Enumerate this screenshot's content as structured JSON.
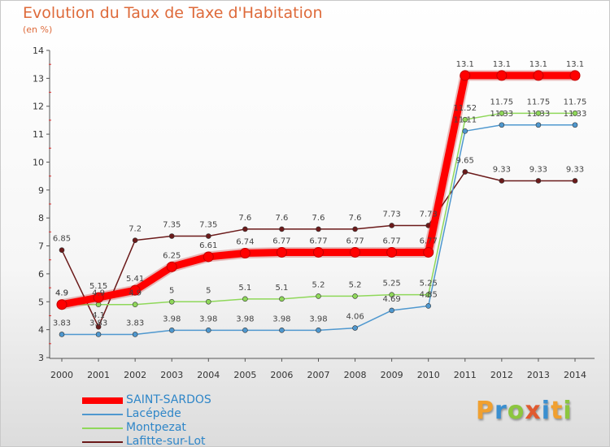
{
  "header": {
    "title": "Evolution du Taux de Taxe d'Habitation",
    "subtitle": "(en %)"
  },
  "logo": {
    "letters": [
      "P",
      "r",
      "o",
      "x",
      "i",
      "t",
      "i"
    ],
    "colors": [
      "#f0a030",
      "#3a8fd0",
      "#8cc63f",
      "#e05a30",
      "#3a8fd0",
      "#f0a030",
      "#8cc63f"
    ]
  },
  "chart_data": {
    "type": "line",
    "x": [
      2000,
      2001,
      2002,
      2003,
      2004,
      2005,
      2006,
      2007,
      2008,
      2009,
      2010,
      2011,
      2012,
      2013,
      2014
    ],
    "ylim": [
      3,
      14
    ],
    "yticks": [
      3,
      4,
      5,
      6,
      7,
      8,
      9,
      10,
      11,
      12,
      13,
      14
    ],
    "grid": false,
    "legend_position": "bottom-left",
    "series": [
      {
        "name": "SAINT-SARDOS",
        "color": "#ff0000",
        "values": [
          4.9,
          5.15,
          5.41,
          6.25,
          6.61,
          6.74,
          6.77,
          6.77,
          6.77,
          6.77,
          6.77,
          13.1,
          13.1,
          13.1,
          13.1
        ],
        "labels": [
          "4.9",
          "5.15",
          "5.41",
          "6.25",
          "6.61",
          "6.74",
          "6.77",
          "6.77",
          "6.77",
          "6.77",
          "6.77",
          "13.1",
          "13.1",
          "13.1",
          "13.1"
        ]
      },
      {
        "name": "Lacépède",
        "color": "#4f98cf",
        "values": [
          3.83,
          3.83,
          3.83,
          3.98,
          3.98,
          3.98,
          3.98,
          3.98,
          4.06,
          4.69,
          4.85,
          11.11,
          11.33,
          11.33,
          11.33
        ],
        "labels": [
          "3.83",
          "3.83",
          "3.83",
          "3.98",
          "3.98",
          "3.98",
          "3.98",
          "3.98",
          "4.06",
          "4.69",
          "4.85",
          "11.11",
          "11.33",
          "11.33",
          "11.33"
        ]
      },
      {
        "name": "Montpezat",
        "color": "#8fd85a",
        "values": [
          4.9,
          4.9,
          4.9,
          5,
          5,
          5.1,
          5.1,
          5.2,
          5.2,
          5.25,
          5.25,
          11.52,
          11.75,
          11.75,
          11.75
        ],
        "labels": [
          "4.9",
          "4.9",
          "4.9",
          "5",
          "5",
          "5.1",
          "5.1",
          "5.2",
          "5.2",
          "5.25",
          "5.25",
          "11.52",
          "11.75",
          "11.75",
          "11.75"
        ]
      },
      {
        "name": "Lafitte-sur-Lot",
        "color": "#6b1a1a",
        "values": [
          6.85,
          4.1,
          7.2,
          7.35,
          7.35,
          7.6,
          7.6,
          7.6,
          7.6,
          7.73,
          7.73,
          9.65,
          9.33,
          9.33,
          9.33
        ],
        "labels": [
          "6.85",
          "4.1",
          "7.2",
          "7.35",
          "7.35",
          "7.6",
          "7.6",
          "7.6",
          "7.6",
          "7.73",
          "7.73",
          "9.65",
          "9.33",
          "9.33",
          "9.33"
        ]
      }
    ]
  }
}
